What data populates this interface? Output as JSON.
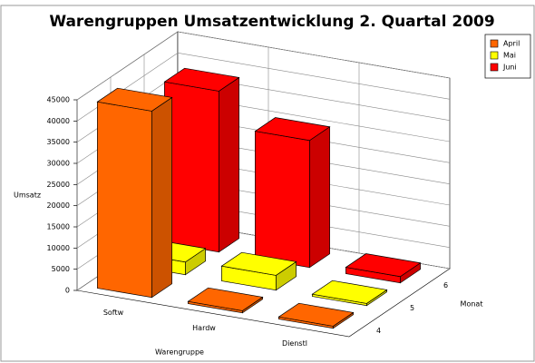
{
  "chart_data": {
    "type": "bar3d",
    "title": "Warengruppen Umsatzentwicklung 2. Quartal 2009",
    "y_label": "Umsatz",
    "x_label": "Warengruppe",
    "depth_label": "Monat",
    "categories": [
      "Softw",
      "Hardw",
      "Dienstl"
    ],
    "depth_categories": [
      "4",
      "5",
      "6"
    ],
    "series": [
      {
        "name": "April",
        "color": "#ff6600",
        "values": [
          44000,
          500,
          500
        ]
      },
      {
        "name": "Mai",
        "color": "#ffff00",
        "values": [
          3000,
          3500,
          500
        ]
      },
      {
        "name": "Juni",
        "color": "#ff0000",
        "values": [
          38000,
          30000,
          1500
        ]
      }
    ],
    "ylim": [
      0,
      45000
    ],
    "yticks": [
      0,
      5000,
      10000,
      15000,
      20000,
      25000,
      30000,
      35000,
      40000,
      45000
    ],
    "grid": true,
    "legend": "top-right"
  }
}
